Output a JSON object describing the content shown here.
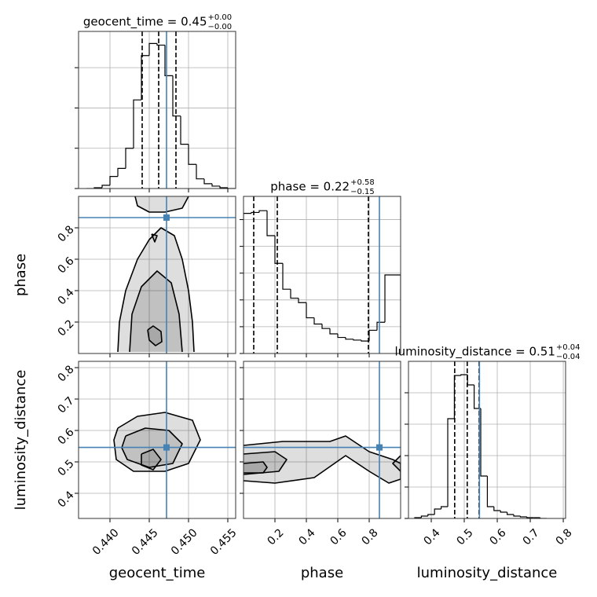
{
  "chart_data": {
    "type": "corner",
    "truth_color": "#4682b4",
    "grid": true,
    "parameters": [
      {
        "label": "geocent_time",
        "title": "geocent_time = 0.45",
        "title_plus": "+0.00",
        "title_minus": "−0.00",
        "xlim": [
          0.436,
          0.456
        ],
        "xticks": [
          {
            "value": 0.44,
            "label": "0.440"
          },
          {
            "value": 0.445,
            "label": "0.445"
          },
          {
            "value": 0.45,
            "label": "0.450"
          },
          {
            "value": 0.455,
            "label": "0.455"
          }
        ],
        "truth": 0.4472,
        "quantiles": [
          0.4441,
          0.4462,
          0.4484
        ],
        "hist": {
          "bins": [
            0.437,
            0.438,
            0.439,
            0.44,
            0.441,
            0.442,
            0.443,
            0.444,
            0.445,
            0.446,
            0.447,
            0.448,
            0.449,
            0.45,
            0.451,
            0.452,
            0.453,
            0.454,
            0.455,
            0.456
          ],
          "counts": [
            0,
            1,
            4,
            15,
            25,
            50,
            110,
            165,
            180,
            178,
            140,
            90,
            55,
            30,
            12,
            6,
            3,
            1,
            0
          ],
          "ylim": [
            0,
            195
          ],
          "yticks": [
            0,
            50,
            100,
            150
          ]
        }
      },
      {
        "label": "phase",
        "title": "phase = 0.22",
        "title_plus": "+0.58",
        "title_minus": "−0.15",
        "xlim": [
          0,
          1
        ],
        "xticks": [
          0.2,
          0.4,
          0.6,
          0.8
        ],
        "ylim": [
          0,
          1
        ],
        "yticks": [
          0.2,
          0.4,
          0.6,
          0.8
        ],
        "truth": 0.865,
        "quantiles": [
          0.065,
          0.215,
          0.795
        ],
        "hist": {
          "bins": [
            0,
            0.05,
            0.1,
            0.15,
            0.2,
            0.25,
            0.3,
            0.35,
            0.4,
            0.45,
            0.5,
            0.55,
            0.6,
            0.65,
            0.7,
            0.75,
            0.8,
            0.85,
            0.9,
            0.95,
            1.0
          ],
          "counts": [
            157,
            158,
            160,
            132,
            101,
            72,
            62,
            57,
            40,
            33,
            28,
            22,
            18,
            16,
            15,
            14,
            26,
            35,
            88,
            88
          ],
          "ylim": [
            0,
            176
          ],
          "yticks": [
            0,
            30,
            60,
            90,
            120,
            150
          ]
        }
      },
      {
        "label": "luminosity_distance",
        "title": "luminosity_distance = 0.51",
        "title_plus": "+0.04",
        "title_minus": "−0.04",
        "xlim": [
          0.331,
          0.807
        ],
        "xticks": [
          0.4,
          0.5,
          0.6,
          0.7,
          0.8
        ],
        "ylim": [
          0.32,
          0.82
        ],
        "yticks": [
          0.4,
          0.5,
          0.6,
          0.7,
          0.8
        ],
        "truth": 0.546,
        "quantiles": [
          0.471,
          0.509,
          0.545
        ],
        "hist": {
          "bins": [
            0.35,
            0.37,
            0.39,
            0.41,
            0.43,
            0.45,
            0.47,
            0.49,
            0.51,
            0.53,
            0.55,
            0.57,
            0.59,
            0.61,
            0.63,
            0.65,
            0.67,
            0.69,
            0.71,
            0.73,
            0.75
          ],
          "counts": [
            1,
            3,
            5,
            12,
            15,
            127,
            182,
            183,
            170,
            140,
            54,
            15,
            10,
            8,
            5,
            3,
            2,
            1,
            1,
            0
          ],
          "ylim": [
            0,
            200
          ],
          "yticks": [
            0,
            40,
            80,
            120,
            160
          ]
        }
      }
    ],
    "pairs": [
      {
        "x": 0,
        "y": 1,
        "contours": [
          {
            "x": [
              0.441,
              0.4412,
              0.442,
              0.4435,
              0.445,
              0.4465,
              0.4482,
              0.4492,
              0.45,
              0.4505,
              0.4507
            ],
            "y": [
              0.01,
              0.2,
              0.4,
              0.6,
              0.725,
              0.8,
              0.75,
              0.6,
              0.4,
              0.2,
              0.01
            ]
          },
          {
            "x": [
              0.4425,
              0.4428,
              0.444,
              0.446,
              0.4478,
              0.4488,
              0.4492
            ],
            "y": [
              0.01,
              0.25,
              0.425,
              0.525,
              0.45,
              0.25,
              0.01
            ]
          },
          {
            "x": [
              0.4448,
              0.4455,
              0.4465,
              0.4466,
              0.4458,
              0.445,
              0.4448
            ],
            "y": [
              0.15,
              0.175,
              0.14,
              0.075,
              0.05,
              0.085,
              0.15
            ]
          },
          {
            "x": [
              0.4432,
              0.4435,
              0.445,
              0.447,
              0.4492,
              0.45
            ],
            "y": [
              1.0,
              0.94,
              0.9,
              0.9,
              0.925,
              1.0
            ]
          },
          {
            "x": [
              0.4453,
              0.446,
              0.4457,
              0.4453
            ],
            "y": [
              0.76,
              0.75,
              0.71,
              0.76
            ]
          }
        ]
      },
      {
        "x": 0,
        "y": 2,
        "contours": [
          {
            "x": [
              0.441,
              0.4435,
              0.447,
              0.4505,
              0.4515,
              0.45,
              0.447,
              0.443,
              0.4408,
              0.4405,
              0.441
            ],
            "y": [
              0.6075,
              0.645,
              0.6575,
              0.6325,
              0.57,
              0.495,
              0.47,
              0.47,
              0.5075,
              0.57,
              0.6075
            ]
          },
          {
            "x": [
              0.442,
              0.4445,
              0.4475,
              0.4492,
              0.448,
              0.445,
              0.4422,
              0.4415,
              0.442
            ],
            "y": [
              0.5825,
              0.6075,
              0.6,
              0.5575,
              0.495,
              0.4825,
              0.5075,
              0.545,
              0.5825
            ]
          },
          {
            "x": [
              0.444,
              0.4455,
              0.4465,
              0.4455,
              0.444,
              0.444
            ],
            "y": [
              0.525,
              0.54,
              0.5075,
              0.475,
              0.49,
              0.525
            ]
          }
        ]
      },
      {
        "x": 1,
        "y": 2,
        "contours": [
          {
            "x": [
              0,
              0.25,
              0.55,
              0.65,
              0.8,
              0.95,
              1.0,
              1.0,
              0.925,
              0.8,
              0.65,
              0.45,
              0.2,
              0
            ],
            "y": [
              0.5525,
              0.565,
              0.565,
              0.5825,
              0.5325,
              0.5075,
              0.495,
              0.445,
              0.4325,
              0.47,
              0.52,
              0.45,
              0.4325,
              0.44
            ]
          },
          {
            "x": [
              0,
              0.2,
              0.275,
              0.225,
              0
            ],
            "y": [
              0.525,
              0.5325,
              0.5075,
              0.47,
              0.46
            ]
          },
          {
            "x": [
              0,
              0.125,
              0.15,
              0.125,
              0
            ],
            "y": [
              0.495,
              0.5,
              0.4825,
              0.465,
              0.465
            ]
          },
          {
            "x": [
              1.0,
              0.95,
              1.0
            ],
            "y": [
              0.52,
              0.495,
              0.47
            ]
          }
        ]
      }
    ]
  }
}
